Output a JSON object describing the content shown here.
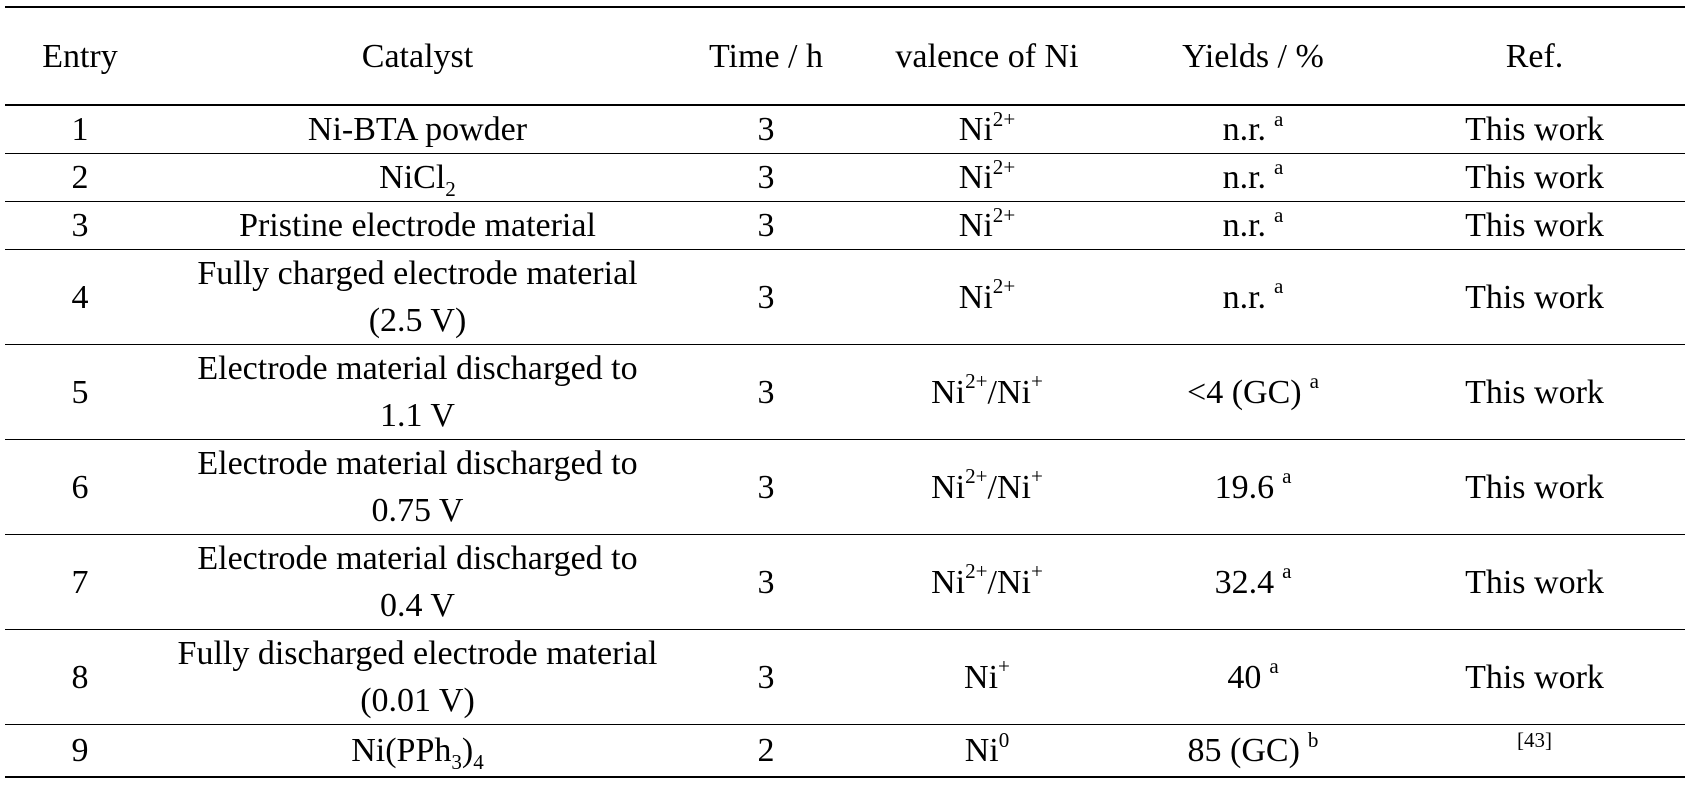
{
  "table": {
    "headers": [
      "Entry",
      "Catalyst",
      "Time / h",
      "valence of Ni",
      "Yields / %",
      "Ref."
    ],
    "rows": [
      {
        "entry": "1",
        "catalyst": [
          "Ni-BTA powder"
        ],
        "time": "3",
        "valence": {
          "base1": "Ni",
          "sup1": "2+"
        },
        "yield": {
          "value": "n.r.",
          "note": "a"
        },
        "ref": "This work"
      },
      {
        "entry": "2",
        "catalyst": [
          {
            "base": "NiCl",
            "sub": "2"
          }
        ],
        "time": "3",
        "valence": {
          "base1": "Ni",
          "sup1": "2+"
        },
        "yield": {
          "value": "n.r.",
          "note": "a"
        },
        "ref": "This work"
      },
      {
        "entry": "3",
        "catalyst": [
          "Pristine electrode material"
        ],
        "time": "3",
        "valence": {
          "base1": "Ni",
          "sup1": "2+"
        },
        "yield": {
          "value": "n.r.",
          "note": "a"
        },
        "ref": "This work"
      },
      {
        "entry": "4",
        "catalyst": [
          "Fully charged electrode material",
          "(2.5 V)"
        ],
        "time": "3",
        "valence": {
          "base1": "Ni",
          "sup1": "2+"
        },
        "yield": {
          "value": "n.r.",
          "note": "a"
        },
        "ref": "This work"
      },
      {
        "entry": "5",
        "catalyst": [
          "Electrode material discharged to",
          "1.1 V"
        ],
        "time": "3",
        "valence": {
          "base1": "Ni",
          "sup1": "2+",
          "sep": "/",
          "base2": "Ni",
          "sup2": "+"
        },
        "yield": {
          "value": "<4 (GC)",
          "note": "a"
        },
        "ref": "This work"
      },
      {
        "entry": "6",
        "catalyst": [
          "Electrode material discharged to",
          "0.75 V"
        ],
        "time": "3",
        "valence": {
          "base1": "Ni",
          "sup1": "2+",
          "sep": "/",
          "base2": "Ni",
          "sup2": "+"
        },
        "yield": {
          "value": "19.6",
          "note": "a"
        },
        "ref": "This work"
      },
      {
        "entry": "7",
        "catalyst": [
          "Electrode material discharged to",
          "0.4 V"
        ],
        "time": "3",
        "valence": {
          "base1": "Ni",
          "sup1": "2+",
          "sep": "/",
          "base2": "Ni",
          "sup2": "+"
        },
        "yield": {
          "value": "32.4",
          "note": "a"
        },
        "ref": "This work"
      },
      {
        "entry": "8",
        "catalyst": [
          "Fully discharged electrode material",
          "(0.01 V)"
        ],
        "time": "3",
        "valence": {
          "base1": "Ni",
          "sup1": "+"
        },
        "yield": {
          "value": "40",
          "note": "a"
        },
        "ref": "This work"
      },
      {
        "entry": "9",
        "catalyst": [
          {
            "base": "Ni(PPh",
            "sub": "3",
            "tail": ")",
            "sub2": "4"
          }
        ],
        "time": "2",
        "valence": {
          "base1": "Ni",
          "sup1": "0"
        },
        "yield": {
          "value": "85 (GC)",
          "note": "b"
        },
        "ref": "[43]"
      }
    ]
  }
}
